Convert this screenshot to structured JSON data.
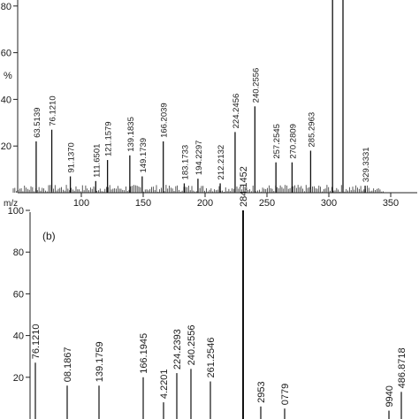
{
  "chart_data": [
    {
      "type": "bar",
      "panel_label": "",
      "xlabel": "m/z",
      "ylabel": "%",
      "xlim": [
        0,
        370
      ],
      "ylim": [
        0,
        100
      ],
      "x_ticks": [
        100,
        150,
        200,
        250,
        300,
        350
      ],
      "y_ticks": [
        20,
        40,
        60,
        80
      ],
      "peaks": [
        {
          "mz": 63.5139,
          "value": 22,
          "label": "63.5139"
        },
        {
          "mz": 76.121,
          "value": 27,
          "label": "76.1210"
        },
        {
          "mz": 91.137,
          "value": 7,
          "label": "91.1370"
        },
        {
          "mz": 111.6501,
          "value": 5,
          "label": "111.6501"
        },
        {
          "mz": 121.1579,
          "value": 14,
          "label": "121.1579"
        },
        {
          "mz": 139.1835,
          "value": 16,
          "label": "139.1835"
        },
        {
          "mz": 149.1739,
          "value": 7,
          "label": "149.1739"
        },
        {
          "mz": 166.2039,
          "value": 22,
          "label": "166.2039"
        },
        {
          "mz": 183.1733,
          "value": 4,
          "label": "183.1733"
        },
        {
          "mz": 194.2297,
          "value": 6,
          "label": "194.2297"
        },
        {
          "mz": 212.2132,
          "value": 4,
          "label": "212.2132"
        },
        {
          "mz": 224.2456,
          "value": 26,
          "label": "224.2456"
        },
        {
          "mz": 240.2556,
          "value": 37,
          "label": "240.2556"
        },
        {
          "mz": 257.2545,
          "value": 13,
          "label": "257.2545"
        },
        {
          "mz": 270.2809,
          "value": 13,
          "label": "270.2809"
        },
        {
          "mz": 285.2963,
          "value": 18,
          "label": "285.2963"
        },
        {
          "mz": 303.0,
          "value": 100,
          "label": ""
        },
        {
          "mz": 329.3331,
          "value": 3,
          "label": "329.3331"
        }
      ]
    },
    {
      "type": "bar",
      "panel_label": "(b)",
      "xlabel": "",
      "ylabel": "",
      "xlim": [
        0,
        370
      ],
      "ylim": [
        0,
        100
      ],
      "y_ticks": [
        20,
        40,
        60,
        80,
        100
      ],
      "peaks": [
        {
          "mz": 76.121,
          "value": 27,
          "label": "76.1210"
        },
        {
          "mz": 108.1867,
          "value": 16,
          "label": "08.1867"
        },
        {
          "mz": 139.1759,
          "value": 16,
          "label": "139.1759"
        },
        {
          "mz": 166.1945,
          "value": 20,
          "label": "166.1945"
        },
        {
          "mz": 184.2201,
          "value": 8,
          "label": "4.2201"
        },
        {
          "mz": 224.2393,
          "value": 22,
          "label": "224.2393"
        },
        {
          "mz": 240.2556,
          "value": 24,
          "label": "240.2556"
        },
        {
          "mz": 261.2546,
          "value": 18,
          "label": "261.2546"
        },
        {
          "mz": 284.1452,
          "value": 100,
          "label": "284.1452"
        },
        {
          "mz": 308.2953,
          "value": 6,
          "label": "2953"
        },
        {
          "mz": 330.0779,
          "value": 5,
          "label": "0779"
        },
        {
          "mz": 369.994,
          "value": 4,
          "label": "9940"
        },
        {
          "mz": 486.8718,
          "value": 13,
          "label": "486.8718"
        }
      ]
    }
  ]
}
